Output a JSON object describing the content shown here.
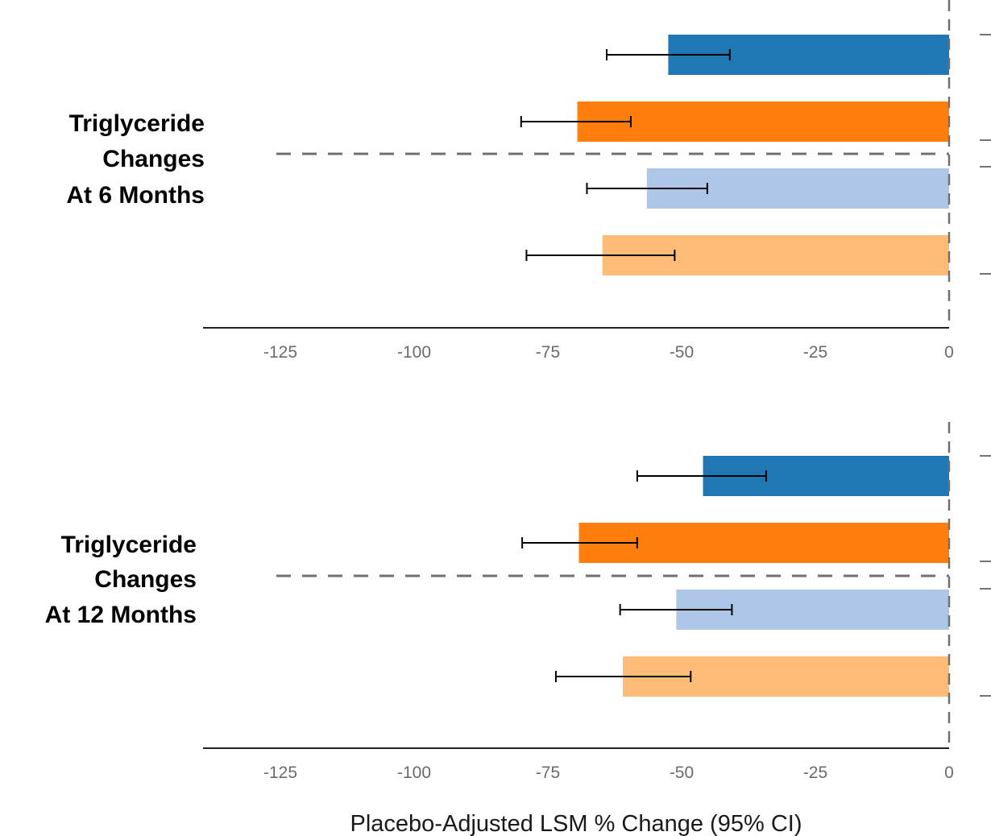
{
  "chart_data": [
    {
      "type": "bar",
      "orientation": "horizontal",
      "panel_label": [
        "Triglyceride",
        "Changes",
        "At 6 Months"
      ],
      "xlim": [
        -134,
        0
      ],
      "xticks": [
        -125,
        -100,
        -75,
        -50,
        -25,
        0
      ],
      "bars": [
        {
          "value": -52.5,
          "ci_low": -64.0,
          "ci_high": -41.0,
          "color": "#1f77b4"
        },
        {
          "value": -69.5,
          "ci_low": -80.0,
          "ci_high": -59.5,
          "color": "#ff7f0e"
        },
        {
          "value": -56.5,
          "ci_low": -67.7,
          "ci_high": -45.2,
          "color": "#aec7e8"
        },
        {
          "value": -64.8,
          "ci_low": -79.0,
          "ci_high": -51.3,
          "color": "#ffbb78"
        }
      ],
      "group_separator": "between bars 2 and 3"
    },
    {
      "type": "bar",
      "orientation": "horizontal",
      "panel_label": [
        "Triglyceride",
        "Changes",
        "At 12 Months"
      ],
      "xlim": [
        -134,
        0
      ],
      "xticks": [
        -125,
        -100,
        -75,
        -50,
        -25,
        0
      ],
      "bars": [
        {
          "value": -46.0,
          "ci_low": -58.3,
          "ci_high": -34.2,
          "color": "#1f77b4"
        },
        {
          "value": -69.2,
          "ci_low": -79.8,
          "ci_high": -58.3,
          "color": "#ff7f0e"
        },
        {
          "value": -51.0,
          "ci_low": -61.5,
          "ci_high": -40.6,
          "color": "#aec7e8"
        },
        {
          "value": -61.0,
          "ci_low": -73.5,
          "ci_high": -48.3,
          "color": "#ffbb78"
        }
      ],
      "group_separator": "between bars 2 and 3"
    }
  ],
  "xlabel": "Placebo-Adjusted LSM % Change (95% CI)"
}
